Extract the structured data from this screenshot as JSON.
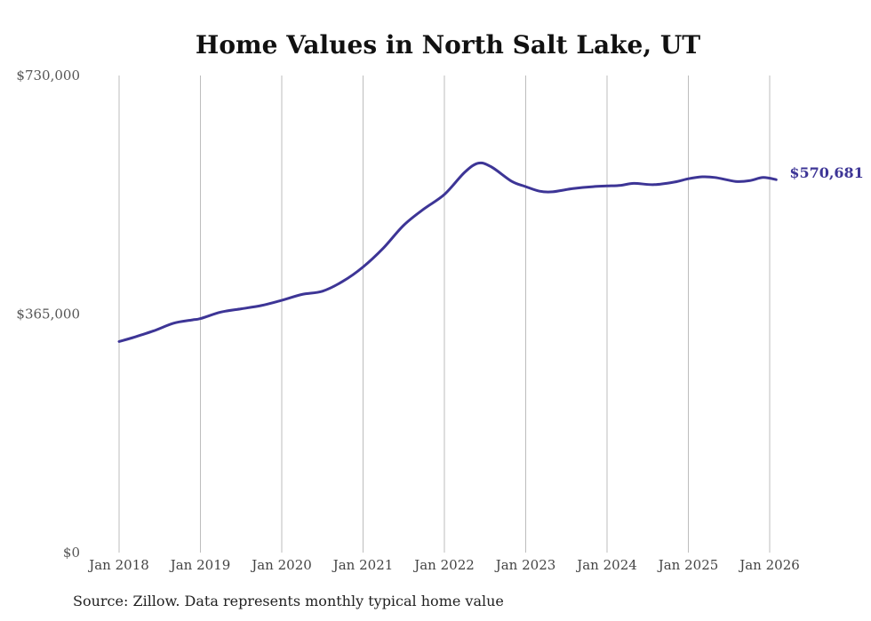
{
  "chart_data": {
    "type": "line",
    "title": "Home Values in North Salt Lake, UT",
    "xlabel": "",
    "ylabel": "",
    "ylim": [
      0,
      730000
    ],
    "yticks": [
      "$0",
      "$365,000",
      "$730,000"
    ],
    "ytick_values": [
      0,
      365000,
      730000
    ],
    "xticks": [
      "Jan 2018",
      "Jan 2019",
      "Jan 2020",
      "Jan 2021",
      "Jan 2022",
      "Jan 2023",
      "Jan 2024",
      "Jan 2025",
      "Jan 2026"
    ],
    "xtick_years": [
      2018,
      2019,
      2020,
      2021,
      2022,
      2023,
      2024,
      2025,
      2026
    ],
    "xlim": [
      2018,
      2026.1
    ],
    "grid": "vertical",
    "line_color": "#3d3596",
    "series": [
      {
        "name": "Typical home value",
        "points": [
          [
            2018.0,
            323000
          ],
          [
            2018.17,
            329000
          ],
          [
            2018.42,
            339000
          ],
          [
            2018.67,
            351000
          ],
          [
            2018.9,
            356000
          ],
          [
            2019.0,
            358000
          ],
          [
            2019.25,
            368000
          ],
          [
            2019.5,
            373000
          ],
          [
            2019.75,
            378000
          ],
          [
            2020.0,
            386000
          ],
          [
            2020.25,
            395000
          ],
          [
            2020.5,
            400000
          ],
          [
            2020.75,
            415000
          ],
          [
            2021.0,
            437000
          ],
          [
            2021.25,
            466000
          ],
          [
            2021.5,
            501000
          ],
          [
            2021.75,
            526000
          ],
          [
            2022.0,
            548000
          ],
          [
            2022.25,
            582000
          ],
          [
            2022.42,
            596000
          ],
          [
            2022.58,
            590000
          ],
          [
            2022.83,
            568000
          ],
          [
            2023.0,
            560000
          ],
          [
            2023.17,
            553000
          ],
          [
            2023.33,
            552000
          ],
          [
            2023.58,
            557000
          ],
          [
            2023.83,
            560000
          ],
          [
            2024.0,
            561000
          ],
          [
            2024.17,
            562000
          ],
          [
            2024.33,
            565000
          ],
          [
            2024.58,
            563000
          ],
          [
            2024.83,
            567000
          ],
          [
            2025.0,
            572000
          ],
          [
            2025.17,
            575000
          ],
          [
            2025.33,
            574000
          ],
          [
            2025.58,
            568000
          ],
          [
            2025.75,
            569000
          ],
          [
            2025.92,
            574000
          ],
          [
            2026.08,
            570681
          ]
        ]
      }
    ],
    "end_label": "$570,681",
    "source": "Source: Zillow. Data represents monthly typical home value"
  }
}
